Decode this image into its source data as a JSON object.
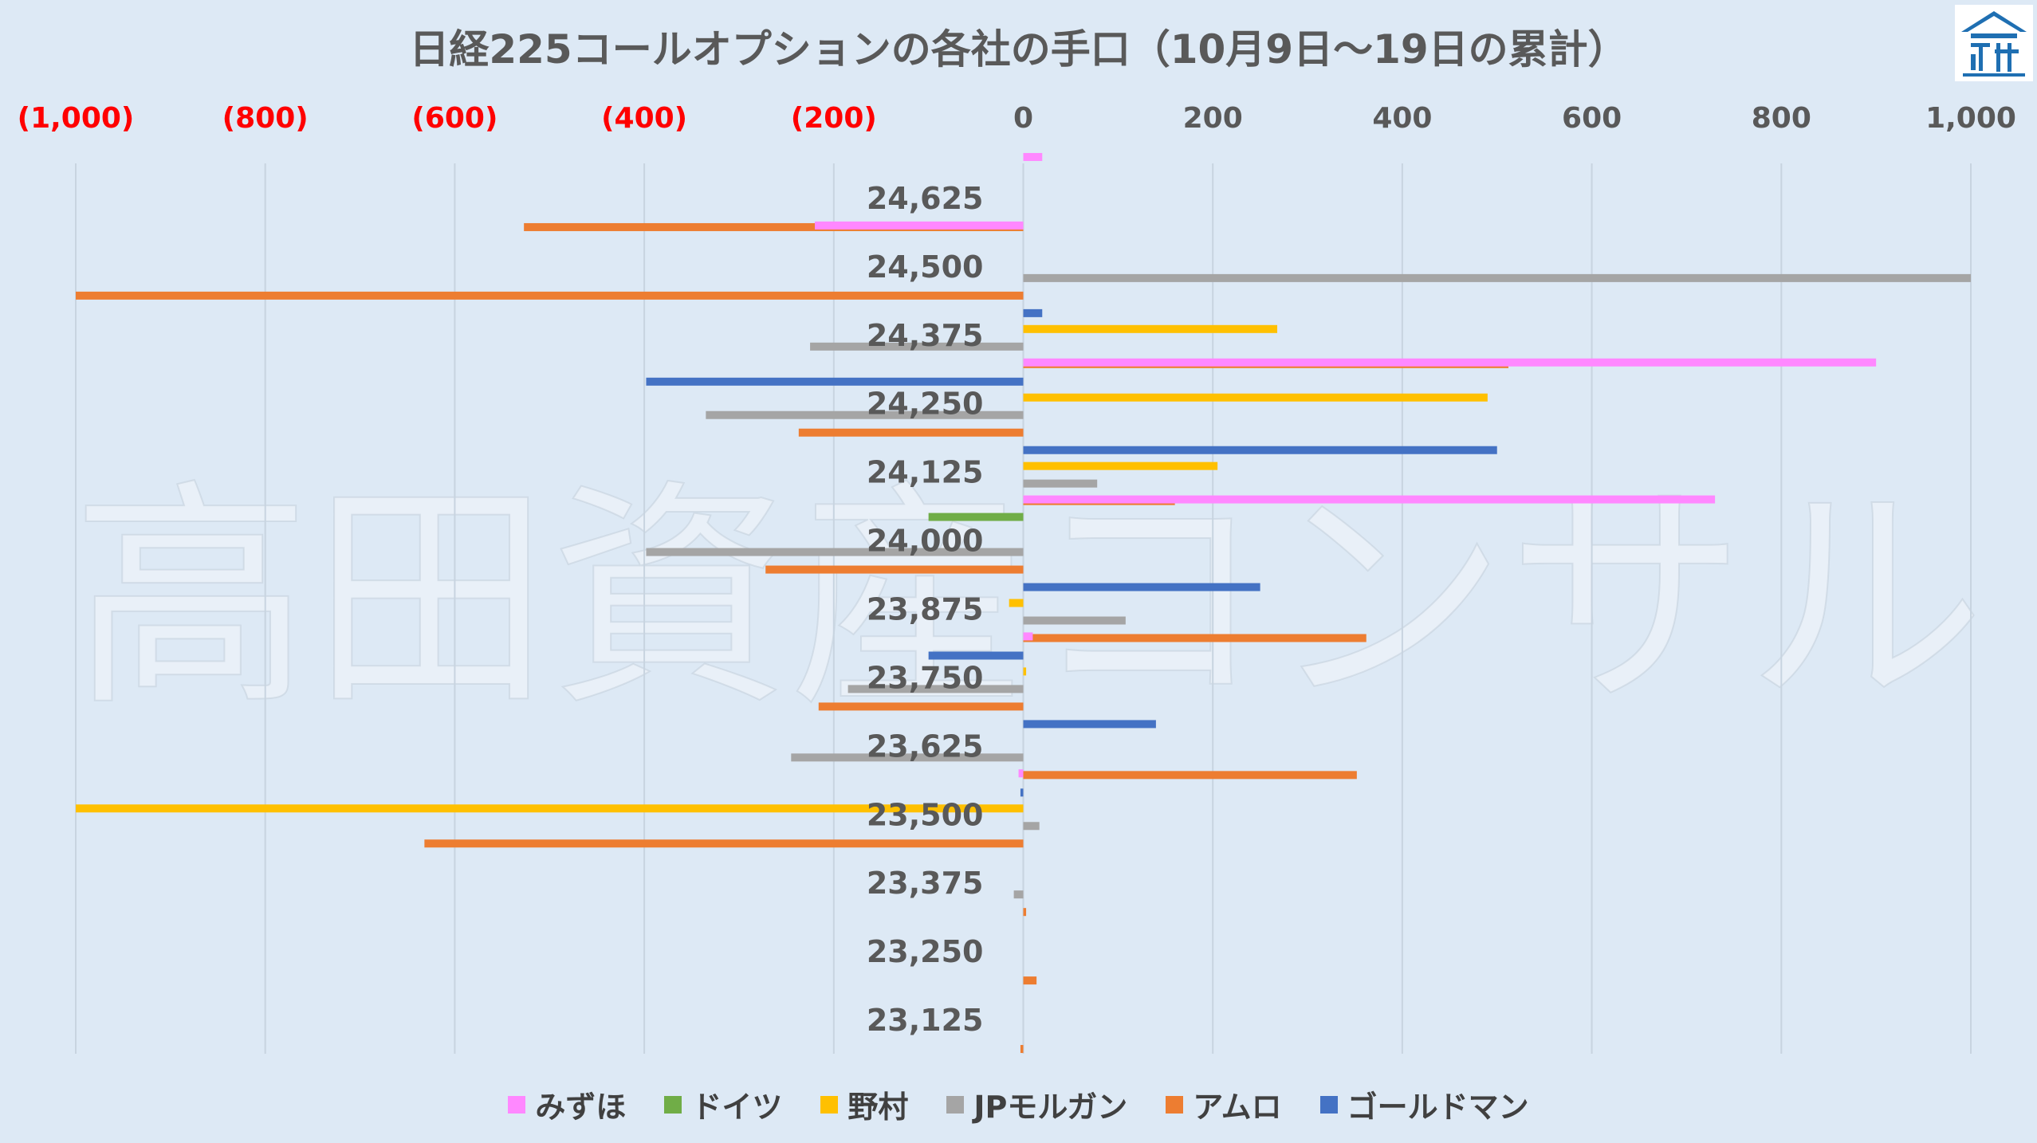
{
  "title": "日経225コールオプションの各社の手口（10月9日～19日の累計）",
  "watermark": "高田資産コンサル",
  "colors": {
    "background": "#dde9f5",
    "gridline": "#c8d4e0",
    "positive_tick": "#595959",
    "negative_tick": "#ff0000",
    "logo": "#1f6fb2"
  },
  "chart_data": {
    "type": "bar",
    "orientation": "horizontal",
    "title": "日経225コールオプションの各社の手口（10月9日～19日の累計）",
    "xlim": [
      -1000,
      1000
    ],
    "x_ticks": [
      -1000,
      -800,
      -600,
      -400,
      -200,
      0,
      200,
      400,
      600,
      800,
      1000
    ],
    "x_tick_labels": [
      "(1,000)",
      "(800)",
      "(600)",
      "(400)",
      "(200)",
      "0",
      "200",
      "400",
      "600",
      "800",
      "1,000"
    ],
    "x_axis_position": "top",
    "grid": true,
    "legend_position": "bottom",
    "categories": [
      "24,625",
      "24,500",
      "24,375",
      "24,250",
      "24,125",
      "24,000",
      "23,875",
      "23,750",
      "23,625",
      "23,500",
      "23,375",
      "23,250",
      "23,125"
    ],
    "series": [
      {
        "name": "みずほ",
        "color": "#ff88ff",
        "values": [
          20,
          -220,
          0,
          900,
          0,
          730,
          0,
          10,
          0,
          -5,
          0,
          0,
          0
        ]
      },
      {
        "name": "ドイツ",
        "color": "#70ad47",
        "values": [
          0,
          0,
          0,
          0,
          0,
          -100,
          0,
          0,
          0,
          0,
          0,
          0,
          0
        ]
      },
      {
        "name": "野村",
        "color": "#ffc000",
        "values": [
          0,
          0,
          268,
          490,
          205,
          0,
          -15,
          3,
          0,
          -1000,
          0,
          0,
          0
        ]
      },
      {
        "name": "JPモルガン",
        "color": "#a5a5a5",
        "values": [
          0,
          1000,
          -225,
          -335,
          78,
          -398,
          108,
          -185,
          -245,
          17,
          -10,
          0,
          0
        ]
      },
      {
        "name": "アムロ",
        "color": "#ed7d31",
        "values": [
          -527,
          -1000,
          512,
          -237,
          160,
          -272,
          362,
          -216,
          352,
          -632,
          3,
          14,
          -3
        ]
      },
      {
        "name": "ゴールドマン",
        "color": "#4472c4",
        "values": [
          0,
          20,
          -398,
          500,
          0,
          250,
          -100,
          140,
          -3,
          0,
          0,
          0,
          0
        ]
      }
    ]
  }
}
